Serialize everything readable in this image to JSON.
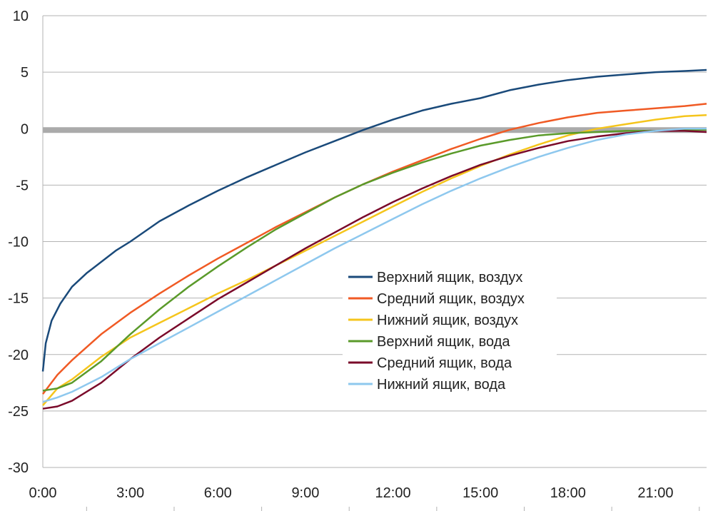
{
  "chart_data": {
    "type": "line",
    "title": "",
    "xlabel": "",
    "ylabel": "",
    "xlim_hours": [
      0,
      22.75
    ],
    "ylim": [
      -30,
      10
    ],
    "y_ticks": [
      10,
      5,
      0,
      -5,
      -10,
      -15,
      -20,
      -25,
      -30
    ],
    "y_tick_labels": [
      "10",
      "5",
      "0",
      "-5",
      "-10",
      "-15",
      "-20",
      "-25",
      "-30"
    ],
    "x_ticks_hours": [
      0,
      3,
      6,
      9,
      12,
      15,
      18,
      21
    ],
    "x_tick_labels": [
      "0:00",
      "3:00",
      "6:00",
      "9:00",
      "12:00",
      "15:00",
      "18:00",
      "21:00"
    ],
    "grid": true,
    "legend_position": "center-right",
    "reference_line": {
      "y": 0,
      "color": "#aaaaaa"
    },
    "series": [
      {
        "name": "Верхний ящик, воздух",
        "color": "#1a4a7a",
        "points": [
          [
            0,
            -21.5
          ],
          [
            0.1,
            -19
          ],
          [
            0.3,
            -17
          ],
          [
            0.6,
            -15.5
          ],
          [
            1,
            -14
          ],
          [
            1.5,
            -12.8
          ],
          [
            2,
            -11.8
          ],
          [
            2.5,
            -10.8
          ],
          [
            3,
            -10
          ],
          [
            4,
            -8.2
          ],
          [
            5,
            -6.8
          ],
          [
            6,
            -5.5
          ],
          [
            7,
            -4.3
          ],
          [
            8,
            -3.2
          ],
          [
            9,
            -2.1
          ],
          [
            10,
            -1.1
          ],
          [
            11,
            -0.1
          ],
          [
            12,
            0.8
          ],
          [
            13,
            1.6
          ],
          [
            14,
            2.2
          ],
          [
            15,
            2.7
          ],
          [
            16,
            3.4
          ],
          [
            17,
            3.9
          ],
          [
            18,
            4.3
          ],
          [
            19,
            4.6
          ],
          [
            20,
            4.8
          ],
          [
            21,
            5
          ],
          [
            22,
            5.1
          ],
          [
            22.75,
            5.2
          ]
        ]
      },
      {
        "name": "Средний ящик, воздух",
        "color": "#f05a24",
        "points": [
          [
            0,
            -23.5
          ],
          [
            0.5,
            -21.8
          ],
          [
            1,
            -20.5
          ],
          [
            2,
            -18.2
          ],
          [
            3,
            -16.3
          ],
          [
            4,
            -14.6
          ],
          [
            5,
            -13
          ],
          [
            6,
            -11.5
          ],
          [
            7,
            -10.1
          ],
          [
            8,
            -8.7
          ],
          [
            9,
            -7.4
          ],
          [
            10,
            -6.1
          ],
          [
            11,
            -4.9
          ],
          [
            12,
            -3.8
          ],
          [
            13,
            -2.8
          ],
          [
            14,
            -1.8
          ],
          [
            15,
            -0.9
          ],
          [
            16,
            -0.1
          ],
          [
            17,
            0.5
          ],
          [
            18,
            1
          ],
          [
            19,
            1.4
          ],
          [
            20,
            1.6
          ],
          [
            21,
            1.8
          ],
          [
            22,
            2
          ],
          [
            22.75,
            2.2
          ]
        ]
      },
      {
        "name": "Нижний ящик, воздух",
        "color": "#f5c51c",
        "points": [
          [
            0,
            -24.5
          ],
          [
            0.5,
            -23
          ],
          [
            1,
            -22.2
          ],
          [
            2,
            -20.2
          ],
          [
            3,
            -18.5
          ],
          [
            4,
            -17.2
          ],
          [
            5,
            -15.9
          ],
          [
            6,
            -14.6
          ],
          [
            7,
            -13.4
          ],
          [
            8,
            -12.1
          ],
          [
            9,
            -10.8
          ],
          [
            10,
            -9.5
          ],
          [
            11,
            -8.2
          ],
          [
            12,
            -6.9
          ],
          [
            13,
            -5.6
          ],
          [
            14,
            -4.4
          ],
          [
            15,
            -3.3
          ],
          [
            16,
            -2.3
          ],
          [
            17,
            -1.4
          ],
          [
            18,
            -0.6
          ],
          [
            19,
            0
          ],
          [
            20,
            0.4
          ],
          [
            21,
            0.8
          ],
          [
            22,
            1.1
          ],
          [
            22.75,
            1.2
          ]
        ]
      },
      {
        "name": "Верхний ящик, вода",
        "color": "#5a9a2a",
        "points": [
          [
            0,
            -23.2
          ],
          [
            0.5,
            -23
          ],
          [
            1,
            -22.5
          ],
          [
            2,
            -20.6
          ],
          [
            3,
            -18.2
          ],
          [
            4,
            -16
          ],
          [
            5,
            -14
          ],
          [
            6,
            -12.2
          ],
          [
            7,
            -10.5
          ],
          [
            8,
            -8.9
          ],
          [
            9,
            -7.5
          ],
          [
            10,
            -6.1
          ],
          [
            11,
            -4.9
          ],
          [
            12,
            -3.9
          ],
          [
            13,
            -3
          ],
          [
            14,
            -2.2
          ],
          [
            15,
            -1.5
          ],
          [
            16,
            -1
          ],
          [
            17,
            -0.6
          ],
          [
            18,
            -0.4
          ],
          [
            19,
            -0.3
          ],
          [
            20,
            -0.2
          ],
          [
            21,
            -0.2
          ],
          [
            22,
            -0.1
          ],
          [
            22.75,
            -0.1
          ]
        ]
      },
      {
        "name": "Средний ящик, вода",
        "color": "#7a0a2a",
        "points": [
          [
            0,
            -24.8
          ],
          [
            0.5,
            -24.6
          ],
          [
            1,
            -24.1
          ],
          [
            2,
            -22.5
          ],
          [
            3,
            -20.4
          ],
          [
            4,
            -18.5
          ],
          [
            5,
            -16.8
          ],
          [
            6,
            -15.1
          ],
          [
            7,
            -13.6
          ],
          [
            8,
            -12.1
          ],
          [
            9,
            -10.6
          ],
          [
            10,
            -9.2
          ],
          [
            11,
            -7.8
          ],
          [
            12,
            -6.5
          ],
          [
            13,
            -5.3
          ],
          [
            14,
            -4.2
          ],
          [
            15,
            -3.2
          ],
          [
            16,
            -2.4
          ],
          [
            17,
            -1.7
          ],
          [
            18,
            -1.1
          ],
          [
            19,
            -0.7
          ],
          [
            20,
            -0.4
          ],
          [
            21,
            -0.2
          ],
          [
            22,
            -0.2
          ],
          [
            22.75,
            -0.3
          ]
        ]
      },
      {
        "name": "Нижний ящик, вода",
        "color": "#8ec8ee",
        "points": [
          [
            0,
            -24.2
          ],
          [
            0.5,
            -23.8
          ],
          [
            1,
            -23.3
          ],
          [
            2,
            -22
          ],
          [
            3,
            -20.4
          ],
          [
            4,
            -19
          ],
          [
            5,
            -17.6
          ],
          [
            6,
            -16.2
          ],
          [
            7,
            -14.8
          ],
          [
            8,
            -13.4
          ],
          [
            9,
            -12
          ],
          [
            10,
            -10.6
          ],
          [
            11,
            -9.3
          ],
          [
            12,
            -8
          ],
          [
            13,
            -6.7
          ],
          [
            14,
            -5.5
          ],
          [
            15,
            -4.4
          ],
          [
            16,
            -3.4
          ],
          [
            17,
            -2.5
          ],
          [
            18,
            -1.7
          ],
          [
            19,
            -1
          ],
          [
            20,
            -0.5
          ],
          [
            21,
            -0.2
          ],
          [
            22,
            0
          ],
          [
            22.75,
            0
          ]
        ]
      }
    ]
  }
}
